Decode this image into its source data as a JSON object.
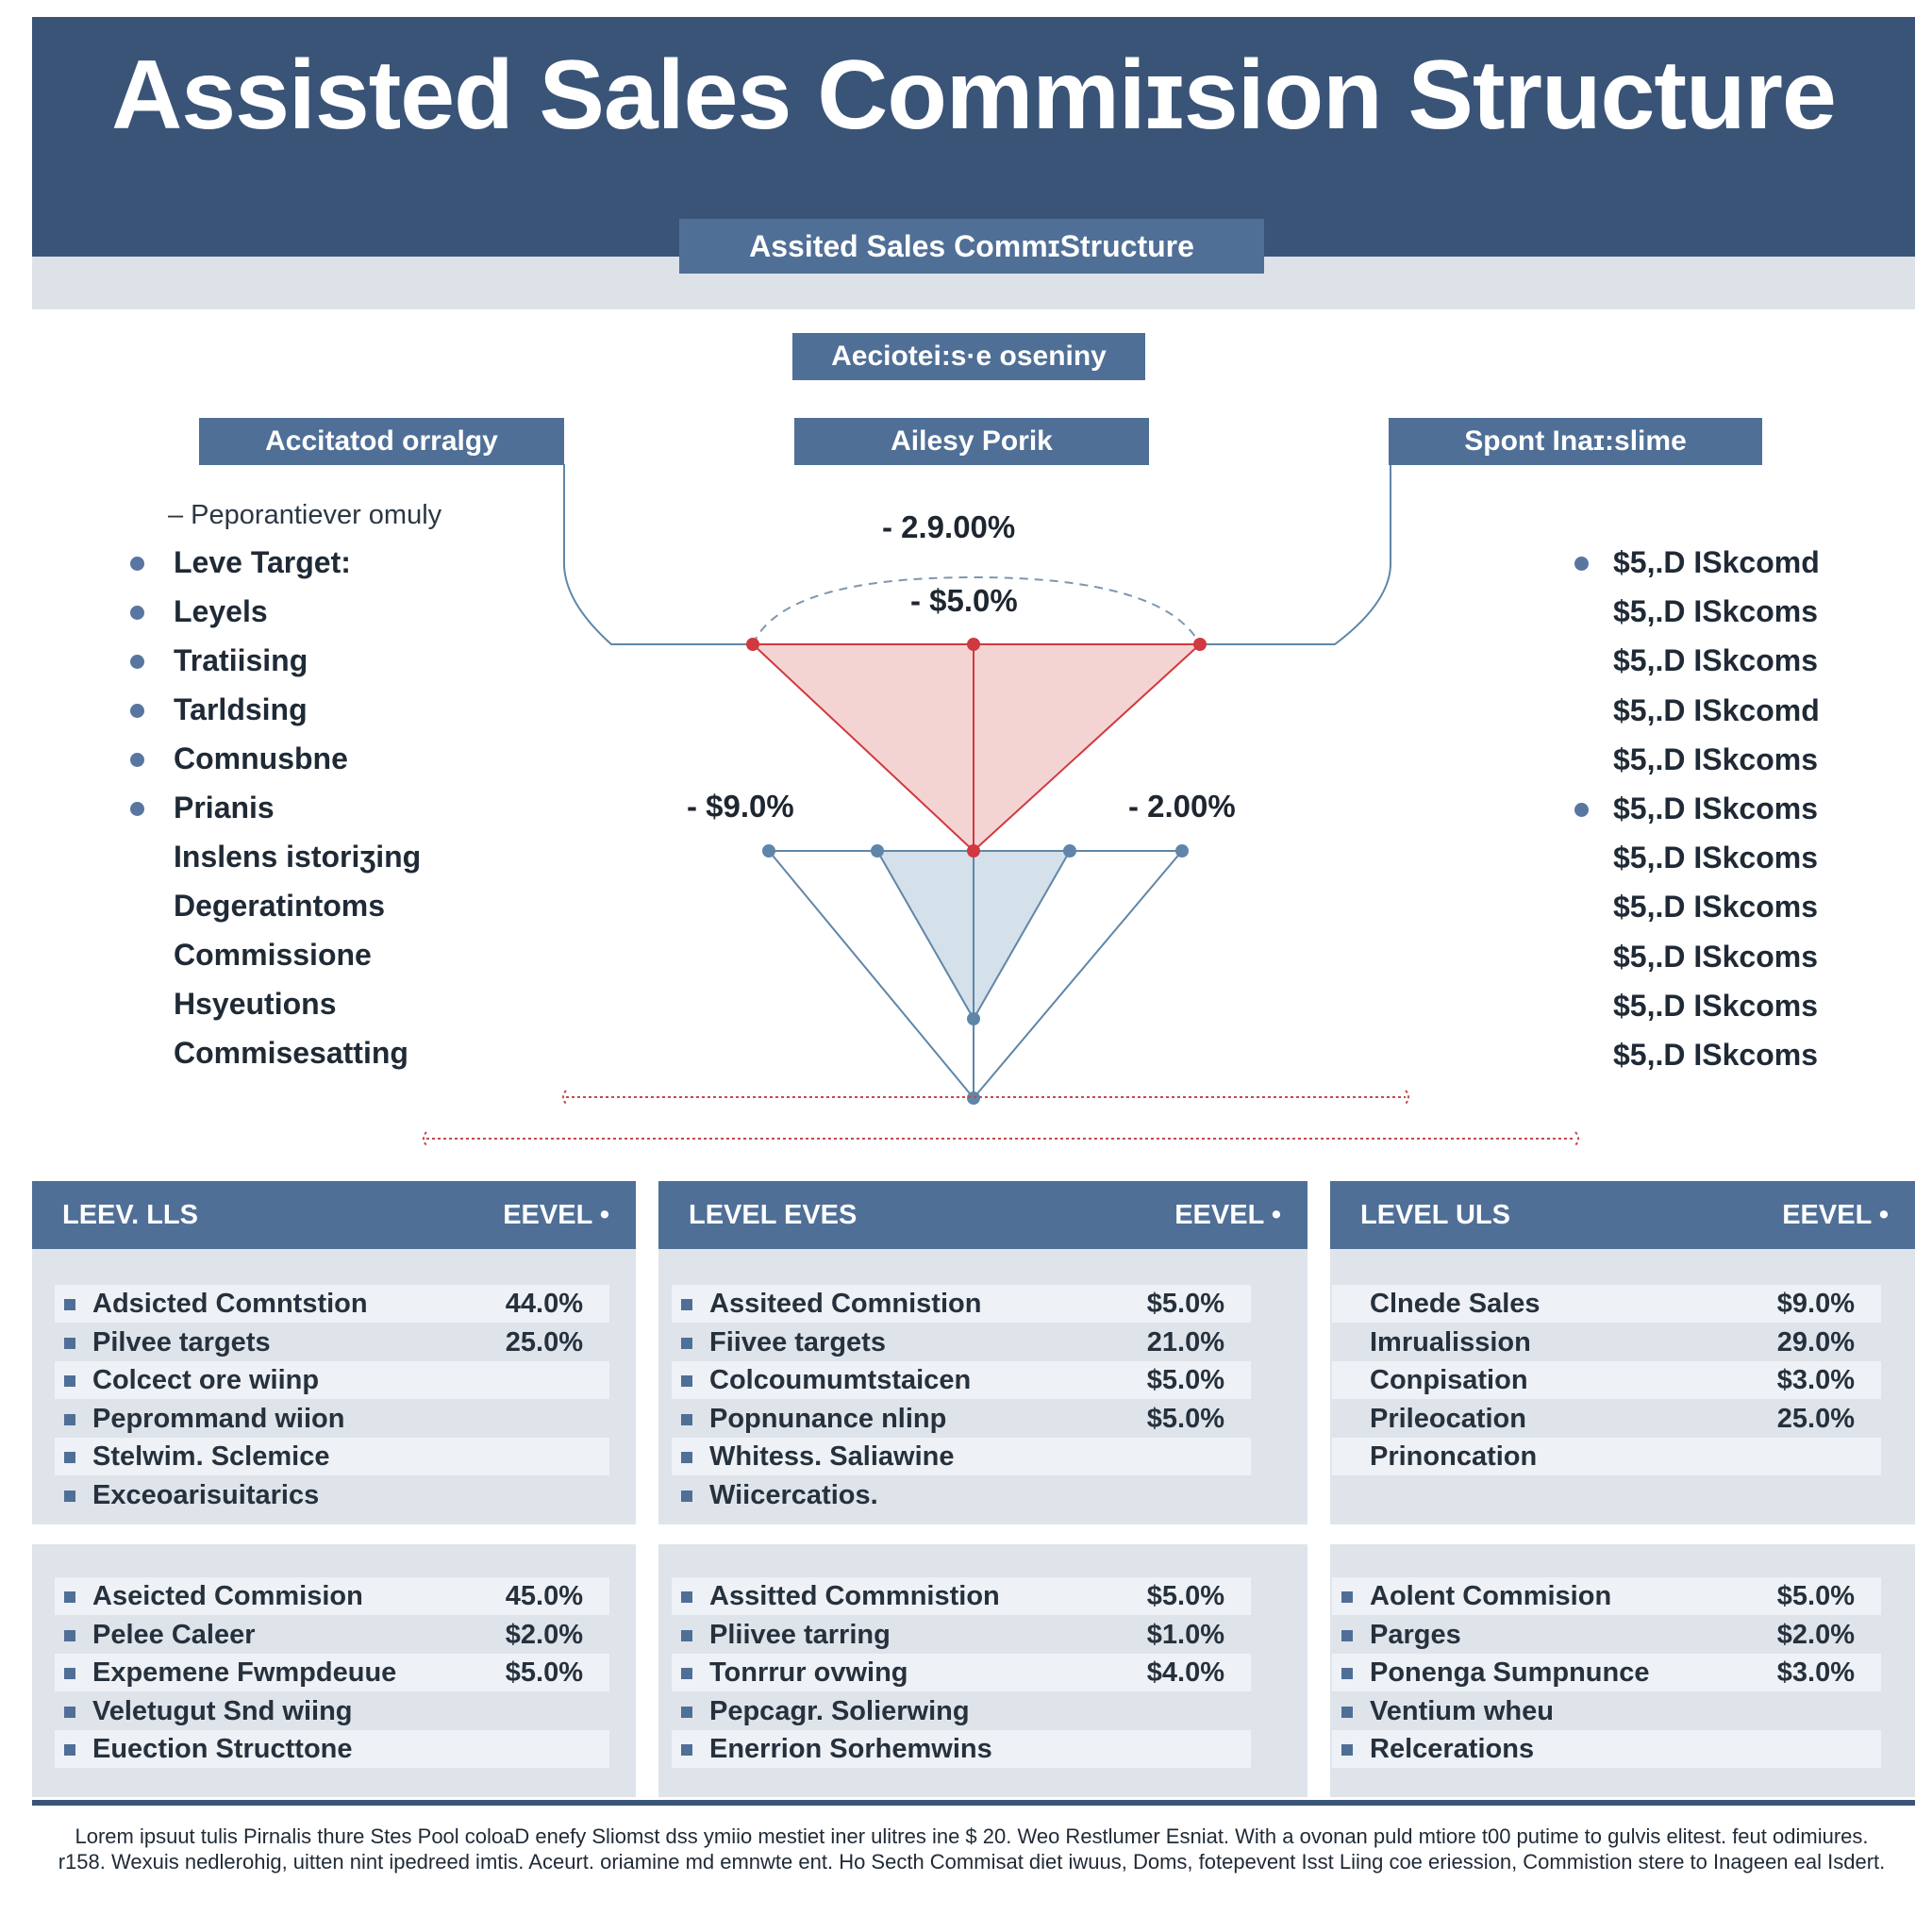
{
  "header": {
    "title": "Assisted Sales Commiɪsion Structure",
    "subtitle": "Assited Sales CommɪStructure"
  },
  "diagram": {
    "top_label": "Aeciotei:s·e oseniny",
    "left_label": "Accitatod orralgy",
    "center_label": "Ailesy Porik",
    "right_label": "Spont Inaɪ:slime",
    "left_caption": "– Peporantiever omuly",
    "left_items": [
      {
        "label": "Leve Target:",
        "bullet": true
      },
      {
        "label": "Leyels",
        "bullet": true
      },
      {
        "label": "Tratiising",
        "bullet": true
      },
      {
        "label": "Tarldsing",
        "bullet": true
      },
      {
        "label": "Comnusbne",
        "bullet": true
      },
      {
        "label": "Prianis",
        "bullet": true
      },
      {
        "label": "Inslens istoriʒing",
        "bullet": false
      },
      {
        "label": "Degeratintoms",
        "bullet": false
      },
      {
        "label": "Commissione",
        "bullet": false
      },
      {
        "label": "Hsyeutions",
        "bullet": false
      },
      {
        "label": "Commisesatting",
        "bullet": false
      }
    ],
    "right_items": [
      {
        "label": "$5,.D ISkcomd",
        "bullet": true
      },
      {
        "label": "$5,.D ISkcoms",
        "bullet": false
      },
      {
        "label": "$5,.D ISkcoms",
        "bullet": false
      },
      {
        "label": "$5,.D ISkcomd",
        "bullet": false
      },
      {
        "label": "$5,.D ISkcoms",
        "bullet": false
      },
      {
        "label": "$5,.D ISkcoms",
        "bullet": true
      },
      {
        "label": "$5,.D ISkcoms",
        "bullet": false
      },
      {
        "label": "$5,.D ISkcoms",
        "bullet": false
      },
      {
        "label": "$5,.D ISkcoms",
        "bullet": false
      },
      {
        "label": "$5,.D ISkcoms",
        "bullet": false
      },
      {
        "label": "$5,.D ISkcoms",
        "bullet": false
      }
    ],
    "pct_top": "- 2.9.00%",
    "pct_mid": "- $5.0%",
    "pct_left": "- $9.0%",
    "pct_right": "- 2.00%",
    "colors": {
      "red": "#d0393f",
      "red_fill": "#f4d4d3",
      "blue": "#5f86a8",
      "blue_fill": "#d4e0ea",
      "navy": "#3a5478"
    }
  },
  "panels": {
    "top": [
      {
        "head_left": "LEEV. LLS",
        "head_right": "EEVEL  •",
        "rows": [
          {
            "label": "Adsicted Comntstion",
            "value": "44.0%",
            "bullet": true
          },
          {
            "label": "Pilvee targets",
            "value": "25.0%",
            "bullet": true
          },
          {
            "label": "Colcect ore wiinp",
            "value": "",
            "bullet": true
          },
          {
            "label": "Peprommand wiion",
            "value": "",
            "bullet": true
          },
          {
            "label": "Stelwim. Sclemice",
            "value": "",
            "bullet": true
          },
          {
            "label": "Exceoarisuitarics",
            "value": "",
            "bullet": true
          }
        ]
      },
      {
        "head_left": "LEVEL EVES",
        "head_right": "EEVEL   •",
        "rows": [
          {
            "label": "Assiteed Comnistion",
            "value": "$5.0%",
            "bullet": true
          },
          {
            "label": "Fiivee targets",
            "value": "21.0%",
            "bullet": true
          },
          {
            "label": "Colcoumumtstaicen",
            "value": "$5.0%",
            "bullet": true
          },
          {
            "label": "Popnunance nlinp",
            "value": "$5.0%",
            "bullet": true
          },
          {
            "label": "Whitess. Saliawine",
            "value": "",
            "bullet": true
          },
          {
            "label": "Wiicercatios.",
            "value": "",
            "bullet": true
          }
        ]
      },
      {
        "head_left": "LEVEL ULS",
        "head_right": "EEVEL  •",
        "rows": [
          {
            "label": "Clnede Sales",
            "value": "$9.0%",
            "bullet": false
          },
          {
            "label": "Imrualission",
            "value": "29.0%",
            "bullet": false
          },
          {
            "label": "Conpisation",
            "value": "$3.0%",
            "bullet": false
          },
          {
            "label": "Prileocation",
            "value": "25.0%",
            "bullet": false
          },
          {
            "label": "Prinoncation",
            "value": "",
            "bullet": false
          }
        ]
      }
    ],
    "bottom": [
      {
        "rows": [
          {
            "label": "Aseicted Commision",
            "value": "45.0%",
            "bullet": true
          },
          {
            "label": "Pelee Caleer",
            "value": "$2.0%",
            "bullet": true
          },
          {
            "label": "Expemene Fwmpdeuue",
            "value": "$5.0%",
            "bullet": true
          },
          {
            "label": "Veletugut Snd wiing",
            "value": "",
            "bullet": true
          },
          {
            "label": "Euection Structtone",
            "value": "",
            "bullet": true
          }
        ]
      },
      {
        "rows": [
          {
            "label": "Assitted Commnistion",
            "value": "$5.0%",
            "bullet": true
          },
          {
            "label": "Pliivee tarring",
            "value": "$1.0%",
            "bullet": true
          },
          {
            "label": "Tonrrur ovwing",
            "value": "$4.0%",
            "bullet": true
          },
          {
            "label": "Pepcagr. Solierwing",
            "value": "",
            "bullet": true
          },
          {
            "label": "Enerrion Sorhemwins",
            "value": "",
            "bullet": true
          }
        ]
      },
      {
        "rows": [
          {
            "label": "Aolent Commision",
            "value": "$5.0%",
            "bullet": true
          },
          {
            "label": "Parges",
            "value": "$2.0%",
            "bullet": true
          },
          {
            "label": "Ponenga Sumpnunce",
            "value": "$3.0%",
            "bullet": true
          },
          {
            "label": "Ventium wheu",
            "value": "",
            "bullet": true
          },
          {
            "label": "Relcerations",
            "value": "",
            "bullet": true
          }
        ]
      }
    ]
  },
  "footer": "Lorem ipsuut tulis Pirnalis thure Stes Pool coloaD enefy Sliomst dss ymiio mestiet iner ulitres ine $ 20. Weo Restlumer Esniat. With a ovonan puld mtiore t00 putime to gulvis elitest. feut odimiures. r158. Wexuis nedlerohig, uitten nint ipedreed imtis. Aceurt. oriamine md emnwte ent. Ho Secth Commisat diet iwuus, Doms, fotepevent Isst Liing coe eriession, Commistion stere to Inageen eal Isdert."
}
